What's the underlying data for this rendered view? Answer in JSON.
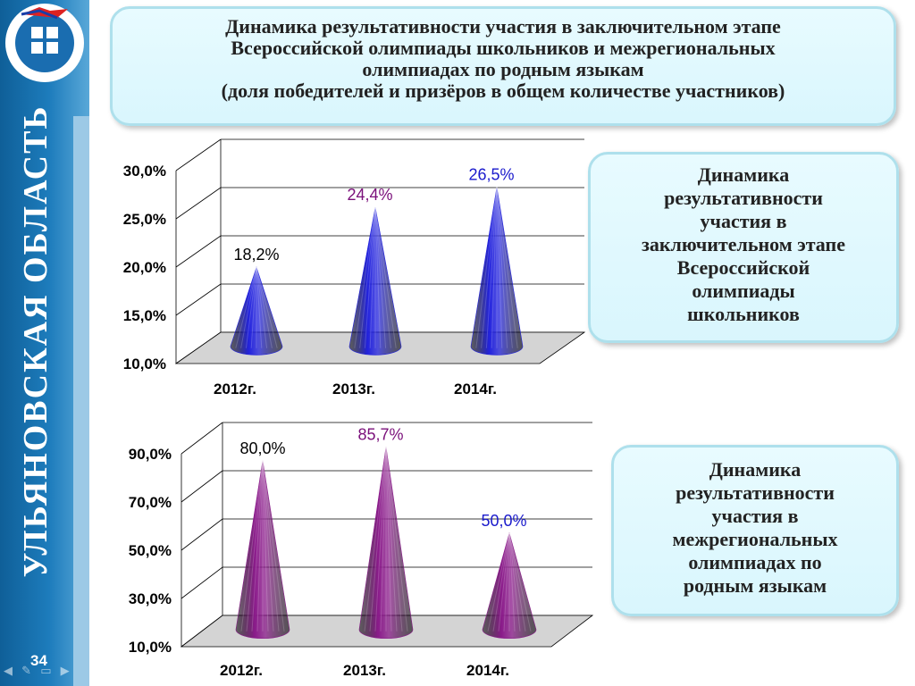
{
  "sidebar": {
    "region_title": "УЛЬЯНОВСКАЯ ОБЛАСТЬ",
    "slide_number": "34"
  },
  "title": {
    "lines": [
      "Динамика результативности участия в заключительном этапе",
      "Всероссийской олимпиады школьников и межрегиональных",
      "олимпиадах по родным языкам",
      "(доля победителей и призёров в общем количестве участников)"
    ]
  },
  "box1": {
    "lines": [
      "Динамика",
      "результативности",
      "участия в",
      "заключительном этапе",
      "Всероссийской",
      "олимпиады",
      "школьников"
    ]
  },
  "box2": {
    "lines": [
      "Динамика",
      "результативности",
      "участия в",
      "межрегиональных",
      "олимпиадах по",
      "родным языкам"
    ]
  },
  "colors": {
    "chart1_series": "#2222dd",
    "chart2_series": "#8a1a8a",
    "label_black": "#000000",
    "label_purple": "#7a0f7a",
    "label_blue": "#1a1acc"
  },
  "chart_data": [
    {
      "type": "bar",
      "shape": "cone",
      "categories": [
        "2012г.",
        "2013г.",
        "2014г."
      ],
      "values": [
        18.2,
        24.4,
        26.5
      ],
      "data_labels": [
        "18,2%",
        "24,4%",
        "26,5%"
      ],
      "data_label_colors": [
        "#000000",
        "#7a0f7a",
        "#1a1acc"
      ],
      "y_ticks": [
        "10,0%",
        "15,0%",
        "20,0%",
        "25,0%",
        "30,0%"
      ],
      "ylim": [
        10,
        30
      ],
      "grid": true
    },
    {
      "type": "bar",
      "shape": "cone",
      "categories": [
        "2012г.",
        "2013г.",
        "2014г."
      ],
      "values": [
        80.0,
        85.7,
        50.0
      ],
      "data_labels": [
        "80,0%",
        "85,7%",
        "50,0%"
      ],
      "data_label_colors": [
        "#000000",
        "#7a0f7a",
        "#1a1acc"
      ],
      "y_ticks": [
        "10,0%",
        "30,0%",
        "50,0%",
        "70,0%",
        "90,0%"
      ],
      "ylim": [
        10,
        90
      ],
      "grid": true
    }
  ]
}
